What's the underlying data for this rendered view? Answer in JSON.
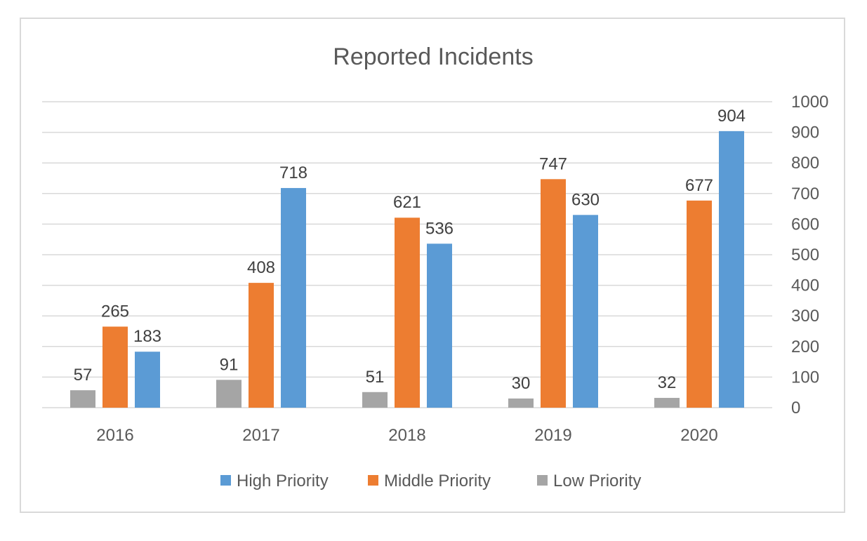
{
  "chart_data": {
    "type": "bar",
    "title": "Reported Incidents",
    "categories": [
      "2016",
      "2017",
      "2018",
      "2019",
      "2020"
    ],
    "series": [
      {
        "name": "Low Priority",
        "color": "#a5a5a5",
        "values": [
          57,
          91,
          51,
          30,
          32
        ]
      },
      {
        "name": "Middle Priority",
        "color": "#ed7d31",
        "values": [
          265,
          408,
          621,
          747,
          677
        ]
      },
      {
        "name": "High Priority",
        "color": "#5b9bd5",
        "values": [
          183,
          718,
          536,
          630,
          904
        ]
      }
    ],
    "legend_order": [
      "High Priority",
      "Middle Priority",
      "Low Priority"
    ],
    "ylim": [
      0,
      1000
    ],
    "yticks": [
      "0",
      "100",
      "200",
      "300",
      "400",
      "500",
      "600",
      "700",
      "800",
      "900",
      "1000"
    ],
    "y_axis_side": "right",
    "grid": true,
    "legend_position": "bottom",
    "data_labels": true,
    "xlabel": "",
    "ylabel": ""
  }
}
